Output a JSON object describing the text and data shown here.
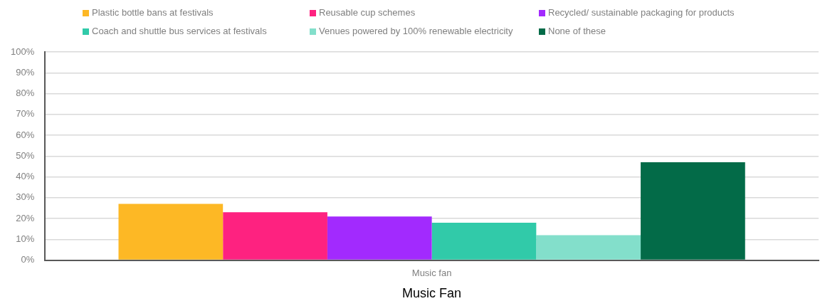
{
  "chart_data": {
    "type": "bar",
    "xlabel": "Music Fan",
    "categories": [
      "Music fan"
    ],
    "series": [
      {
        "name": "Plastic bottle bans at festivals",
        "color": "#fdb825",
        "values": [
          27
        ]
      },
      {
        "name": "Reusable cup schemes",
        "color": "#fe2280",
        "values": [
          23
        ]
      },
      {
        "name": "Recycled/ sustainable packaging for products",
        "color": "#a22afe",
        "values": [
          21
        ]
      },
      {
        "name": "Coach and shuttle bus services at festivals",
        "color": "#31caa9",
        "values": [
          18
        ]
      },
      {
        "name": "Venues powered by 100% renewable electricity",
        "color": "#83dfcb",
        "values": [
          12
        ]
      },
      {
        "name": "None of these",
        "color": "#036b48",
        "values": [
          47
        ]
      }
    ],
    "ylim": [
      0,
      100
    ],
    "yticks": [
      {
        "value": 0,
        "label": "0%"
      },
      {
        "value": 10,
        "label": "10%"
      },
      {
        "value": 20,
        "label": "20%"
      },
      {
        "value": 30,
        "label": "30%"
      },
      {
        "value": 40,
        "label": "40%"
      },
      {
        "value": 50,
        "label": "50%"
      },
      {
        "value": 60,
        "label": "60%"
      },
      {
        "value": 70,
        "label": "70%"
      },
      {
        "value": 80,
        "label": "80%"
      },
      {
        "value": 90,
        "label": "90%"
      },
      {
        "value": 100,
        "label": "100%"
      }
    ],
    "grid": "y",
    "legend": "top"
  }
}
